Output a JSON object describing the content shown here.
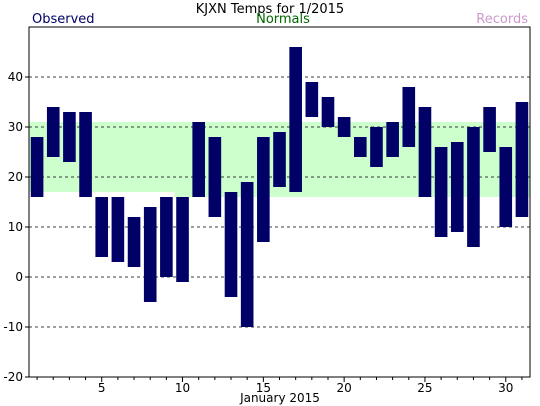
{
  "chart_data": {
    "type": "bar",
    "title": "KJXN Temps for 1/2015",
    "xlabel": "January 2015",
    "ylabel": "",
    "legend": {
      "observed": "Observed",
      "normals": "Normals",
      "records": "Records",
      "placement": "top"
    },
    "colors": {
      "observed": "#000066",
      "normals_band": "#ccffcc",
      "normals_text": "#006600",
      "records_text": "#cc99cc",
      "observed_text": "#000066"
    },
    "grid": true,
    "ylim": [
      -20,
      50
    ],
    "y_ticks": [
      -20,
      -10,
      0,
      10,
      20,
      30,
      40
    ],
    "xlim": [
      0.5,
      31.5
    ],
    "x_ticks": [
      5,
      10,
      15,
      20,
      25,
      30
    ],
    "days": [
      1,
      2,
      3,
      4,
      5,
      6,
      7,
      8,
      9,
      10,
      11,
      12,
      13,
      14,
      15,
      16,
      17,
      18,
      19,
      20,
      21,
      22,
      23,
      24,
      25,
      26,
      27,
      28,
      29,
      30,
      31
    ],
    "observed_high": [
      28,
      34,
      33,
      33,
      16,
      16,
      12,
      14,
      16,
      16,
      31,
      28,
      17,
      19,
      28,
      29,
      46,
      39,
      36,
      32,
      28,
      30,
      31,
      38,
      34,
      26,
      27,
      30,
      34,
      26,
      35
    ],
    "observed_low": [
      16,
      24,
      23,
      16,
      4,
      3,
      2,
      -5,
      0,
      -1,
      16,
      12,
      -4,
      -10,
      7,
      18,
      17,
      32,
      30,
      28,
      24,
      22,
      24,
      26,
      16,
      8,
      9,
      6,
      25,
      10,
      12
    ],
    "normal_high": [
      31,
      31,
      31,
      31,
      31,
      31,
      31,
      31,
      31,
      31,
      31,
      31,
      31,
      31,
      31,
      31,
      31,
      31,
      31,
      31,
      31,
      31,
      31,
      31,
      31,
      31,
      31,
      31,
      31,
      31,
      31
    ],
    "normal_low": [
      17,
      17,
      17,
      17,
      17,
      17,
      17,
      17,
      17,
      16,
      16,
      16,
      16,
      16,
      16,
      16,
      16,
      16,
      16,
      16,
      16,
      16,
      16,
      16,
      16,
      16,
      16,
      16,
      16,
      16,
      16
    ]
  }
}
